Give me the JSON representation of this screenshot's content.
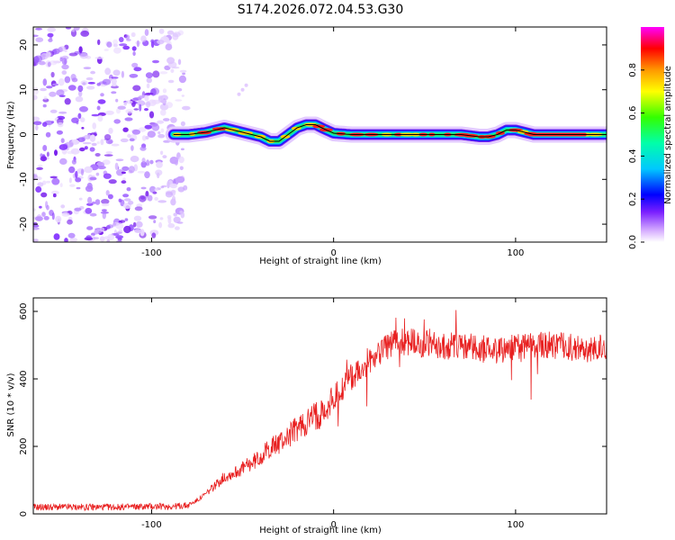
{
  "chart_data": [
    {
      "type": "heatmap",
      "title": "S174.2026.072.04.53.G30",
      "xlabel": "Height of straight line (km)",
      "ylabel": "Frequency (Hz)",
      "xlim": [
        -165,
        150
      ],
      "ylim": [
        -24,
        24
      ],
      "xticks": [
        -100,
        0,
        100
      ],
      "yticks": [
        -20,
        -10,
        0,
        10,
        20
      ],
      "colorbar": {
        "label": "Normalized spectral amplitude",
        "range": [
          0,
          1
        ],
        "ticks": [
          "0.0",
          "0.2",
          "0.4",
          "0.6",
          "0.8"
        ]
      },
      "noise_region": {
        "x_from": -165,
        "x_to": -85,
        "amplitude": "low (0.0-0.3)"
      },
      "ridge": {
        "color_line": "#000000",
        "x": [
          -88,
          -80,
          -70,
          -60,
          -55,
          -50,
          -45,
          -40,
          -35,
          -30,
          -25,
          -20,
          -15,
          -10,
          -5,
          0,
          10,
          20,
          40,
          60,
          70,
          80,
          85,
          90,
          95,
          100,
          110,
          120,
          140,
          150
        ],
        "y": [
          0,
          0,
          0.5,
          1.5,
          1.0,
          0.5,
          0,
          -0.5,
          -1.5,
          -1.5,
          0,
          1.5,
          2.2,
          2.2,
          1.2,
          0.3,
          0,
          0,
          0,
          0,
          0,
          -0.5,
          -0.5,
          0,
          1.0,
          1.0,
          0,
          0,
          0,
          0
        ]
      }
    },
    {
      "type": "line",
      "xlabel": "Height of straight line (km)",
      "ylabel": "SNR (10 * v/v)",
      "xlim": [
        -165,
        150
      ],
      "ylim": [
        0,
        640
      ],
      "xticks": [
        -100,
        0,
        100
      ],
      "yticks": [
        0,
        200,
        400,
        600
      ],
      "series": [
        {
          "name": "SNR",
          "color": "#e82020",
          "x": [
            -165,
            -140,
            -120,
            -100,
            -90,
            -80,
            -75,
            -70,
            -65,
            -60,
            -55,
            -50,
            -45,
            -40,
            -35,
            -30,
            -25,
            -20,
            -15,
            -10,
            -5,
            0,
            5,
            10,
            15,
            20,
            25,
            30,
            40,
            50,
            60,
            70,
            80,
            90,
            100,
            110,
            120,
            130,
            140,
            150
          ],
          "values": [
            20,
            20,
            20,
            22,
            22,
            25,
            40,
            60,
            85,
            110,
            120,
            135,
            150,
            170,
            195,
            210,
            230,
            255,
            270,
            290,
            310,
            340,
            370,
            405,
            430,
            460,
            480,
            500,
            510,
            505,
            500,
            495,
            490,
            485,
            490,
            495,
            500,
            495,
            490,
            495
          ]
        }
      ]
    }
  ]
}
